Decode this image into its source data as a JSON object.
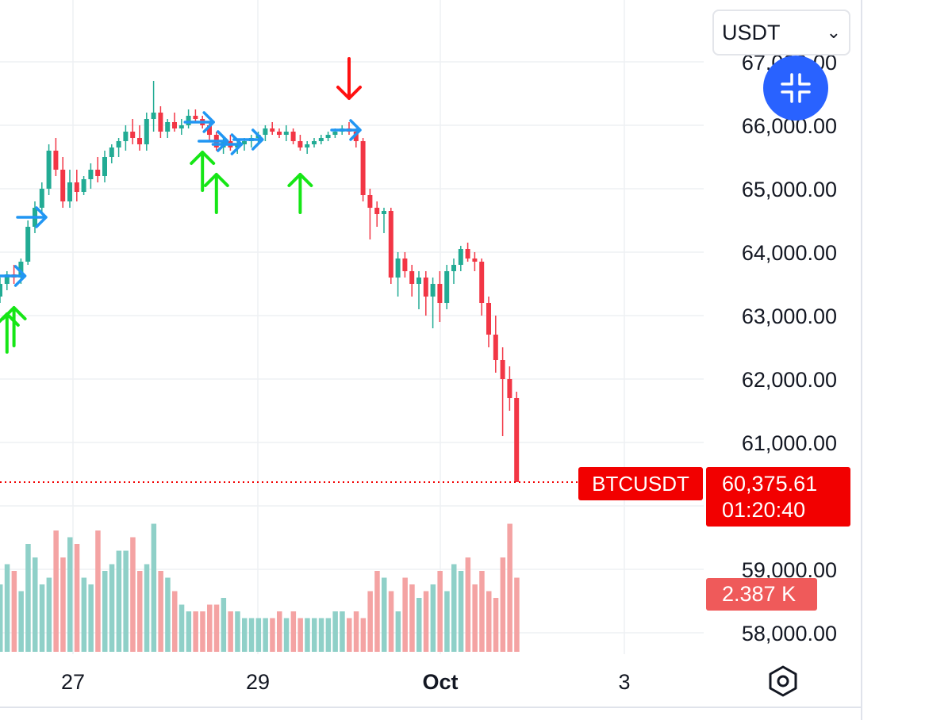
{
  "currency_select": {
    "value": "USDT"
  },
  "symbol": "BTCUSDT",
  "last_price": "60,375.61",
  "countdown": "01:20:40",
  "volume_label": "2.387 K",
  "colors": {
    "up": "#22ab94",
    "down": "#f23645",
    "up_volume": "#8fd0c8",
    "down_volume": "#f4a3a3",
    "price_line": "#f20000",
    "signal_buy": "#16e616",
    "signal_sell": "#ff1010",
    "signal_hold": "#2196f3",
    "accent": "#2962ff"
  },
  "chart_data": {
    "type": "candlestick",
    "price_axis": {
      "tick_labels": [
        "66,000.00",
        "65,000.00",
        "64,000.00",
        "63,000.00",
        "62,000.00",
        "61,000.00",
        "59,000.00",
        "58,000.00"
      ],
      "ticks": [
        66000,
        65000,
        64000,
        63000,
        62000,
        61000,
        59000,
        58000
      ],
      "partially_visible_top": "67,000.00"
    },
    "time_axis": {
      "tick_labels": [
        "27",
        "29",
        "Oct",
        "3"
      ]
    },
    "last_price": 60375.61,
    "grid": true,
    "candles": [
      [
        63300,
        63600,
        63200,
        63500
      ],
      [
        63500,
        63700,
        63400,
        63650
      ],
      [
        63650,
        63800,
        63500,
        63600
      ],
      [
        63600,
        63900,
        63500,
        63850
      ],
      [
        63850,
        64500,
        63800,
        64400
      ],
      [
        64400,
        64800,
        64300,
        64700
      ],
      [
        64700,
        65100,
        64600,
        65000
      ],
      [
        65000,
        65700,
        64900,
        65600
      ],
      [
        65600,
        65800,
        65200,
        65300
      ],
      [
        65300,
        65500,
        64700,
        64800
      ],
      [
        64800,
        65300,
        64700,
        65100
      ],
      [
        65100,
        65300,
        64800,
        64950
      ],
      [
        64950,
        65200,
        64900,
        65150
      ],
      [
        65150,
        65400,
        65000,
        65300
      ],
      [
        65300,
        65500,
        65100,
        65200
      ],
      [
        65200,
        65600,
        65100,
        65500
      ],
      [
        65500,
        65700,
        65400,
        65650
      ],
      [
        65650,
        65800,
        65500,
        65750
      ],
      [
        65750,
        66000,
        65600,
        65900
      ],
      [
        65900,
        66100,
        65700,
        65800
      ],
      [
        65800,
        66000,
        65600,
        65700
      ],
      [
        65700,
        66200,
        65600,
        66100
      ],
      [
        66100,
        66700,
        65900,
        66200
      ],
      [
        66200,
        66300,
        65800,
        65900
      ],
      [
        65900,
        66100,
        65800,
        66050
      ],
      [
        66050,
        66200,
        65900,
        65950
      ],
      [
        65950,
        66100,
        65850,
        66000
      ],
      [
        66000,
        66250,
        65950,
        66150
      ],
      [
        66150,
        66250,
        66050,
        66100
      ],
      [
        66100,
        66150,
        65950,
        66000
      ],
      [
        66000,
        66050,
        65750,
        65850
      ],
      [
        65850,
        65900,
        65600,
        65650
      ],
      [
        65650,
        65800,
        65550,
        65750
      ],
      [
        65750,
        65850,
        65600,
        65650
      ],
      [
        65650,
        65750,
        65550,
        65700
      ],
      [
        65700,
        65800,
        65600,
        65750
      ],
      [
        65750,
        65850,
        65650,
        65800
      ],
      [
        65800,
        65900,
        65700,
        65850
      ],
      [
        65850,
        66000,
        65750,
        65950
      ],
      [
        65950,
        66050,
        65850,
        65900
      ],
      [
        65900,
        65950,
        65800,
        65850
      ],
      [
        65850,
        66000,
        65750,
        65900
      ],
      [
        65900,
        65950,
        65700,
        65750
      ],
      [
        65750,
        65850,
        65600,
        65650
      ],
      [
        65650,
        65750,
        65550,
        65700
      ],
      [
        65700,
        65800,
        65650,
        65750
      ],
      [
        65750,
        65850,
        65700,
        65800
      ],
      [
        65800,
        65900,
        65750,
        65850
      ],
      [
        65850,
        65950,
        65800,
        65900
      ],
      [
        65900,
        66000,
        65850,
        65950
      ],
      [
        65950,
        66050,
        65850,
        65900
      ],
      [
        65900,
        65950,
        65650,
        65750
      ],
      [
        65750,
        65800,
        64800,
        64900
      ],
      [
        64900,
        65000,
        64200,
        64700
      ],
      [
        64700,
        64800,
        64400,
        64600
      ],
      [
        64600,
        64700,
        64300,
        64650
      ],
      [
        64650,
        64700,
        63500,
        63600
      ],
      [
        63600,
        64000,
        63300,
        63900
      ],
      [
        63900,
        64000,
        63600,
        63700
      ],
      [
        63700,
        63800,
        63300,
        63500
      ],
      [
        63500,
        63700,
        63100,
        63600
      ],
      [
        63600,
        63700,
        63000,
        63300
      ],
      [
        63300,
        63600,
        62800,
        63500
      ],
      [
        63500,
        63700,
        62900,
        63200
      ],
      [
        63200,
        63800,
        63100,
        63700
      ],
      [
        63700,
        63900,
        63500,
        63800
      ],
      [
        63800,
        64100,
        63700,
        64050
      ],
      [
        64050,
        64150,
        63850,
        63900
      ],
      [
        63900,
        64000,
        63700,
        63850
      ],
      [
        63850,
        63900,
        63000,
        63200
      ],
      [
        63200,
        63300,
        62500,
        62700
      ],
      [
        62700,
        63000,
        62100,
        62300
      ],
      [
        62300,
        62500,
        61100,
        62000
      ],
      [
        62000,
        62200,
        61500,
        61700
      ],
      [
        61700,
        61800,
        60376,
        60376
      ]
    ],
    "volumes": [
      10,
      13,
      12,
      9,
      16,
      14,
      10,
      11,
      18,
      14,
      17,
      16,
      11,
      10,
      18,
      12,
      13,
      15,
      15,
      17,
      12,
      13,
      19,
      12,
      11,
      9,
      7,
      6,
      6,
      6,
      7,
      7,
      8,
      6,
      6,
      5,
      5,
      5,
      5,
      5,
      6,
      5,
      6,
      5,
      5,
      5,
      5,
      5,
      6,
      6,
      5,
      6,
      5,
      9,
      12,
      11,
      9,
      6,
      11,
      10,
      8,
      9,
      10,
      12,
      9,
      13,
      12,
      14,
      10,
      12,
      9,
      8,
      14,
      19,
      11
    ],
    "signals": [
      {
        "type": "buy",
        "candle": 1
      },
      {
        "type": "buy",
        "candle": 2
      },
      {
        "type": "hold",
        "candle": 2
      },
      {
        "type": "hold",
        "candle": 5
      },
      {
        "type": "hold",
        "candle": 29
      },
      {
        "type": "hold",
        "candle": 31
      },
      {
        "type": "hold",
        "candle": 33
      },
      {
        "type": "hold",
        "candle": 36
      },
      {
        "type": "buy",
        "candle": 29
      },
      {
        "type": "buy",
        "candle": 31
      },
      {
        "type": "buy",
        "candle": 43
      },
      {
        "type": "hold",
        "candle": 50
      },
      {
        "type": "sell",
        "candle": 50
      }
    ]
  }
}
